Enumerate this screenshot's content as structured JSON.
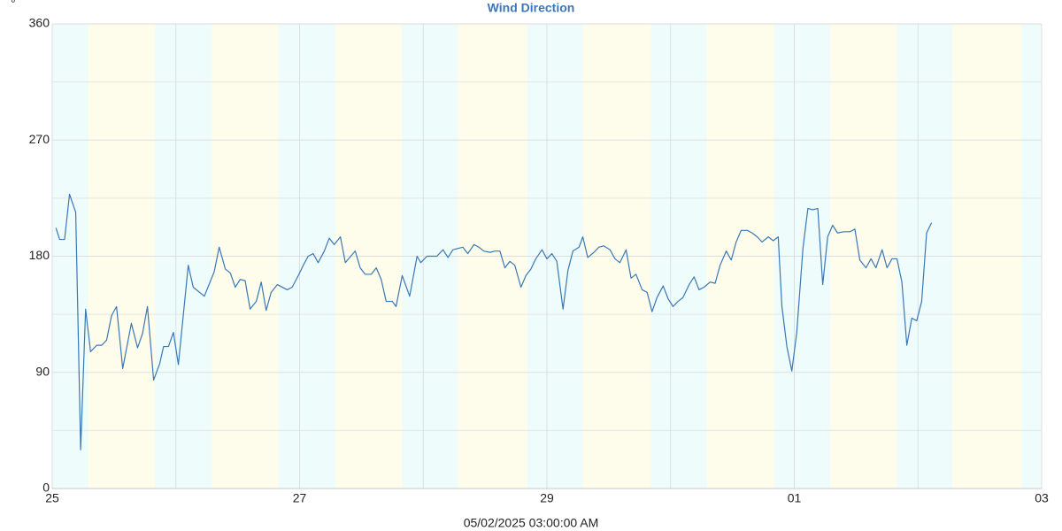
{
  "chart_data": {
    "type": "line",
    "title": "Wind Direction",
    "y_unit": "°",
    "footer": "05/02/2025 03:00:00 AM",
    "color": "#3b77b6",
    "night_color": "#effcfc",
    "day_color": "#fefdec",
    "grid": true,
    "xlim": [
      0,
      8
    ],
    "xticks": [
      {
        "value": 0,
        "label": "25"
      },
      {
        "value": 2,
        "label": "27"
      },
      {
        "value": 4,
        "label": "29"
      },
      {
        "value": 6,
        "label": "01"
      },
      {
        "value": 8,
        "label": "03"
      }
    ],
    "x_minor_ticks": [
      1,
      3,
      5,
      7
    ],
    "ylim": [
      0,
      360
    ],
    "yticks": [
      0,
      90,
      180,
      270,
      360
    ],
    "y_minor_ticks": [
      45,
      135,
      225,
      315
    ],
    "day_bands": [
      [
        0.29,
        0.83
      ],
      [
        1.29,
        1.83
      ],
      [
        2.29,
        2.83
      ],
      [
        3.28,
        3.84
      ],
      [
        4.29,
        4.84
      ],
      [
        5.29,
        5.84
      ],
      [
        6.29,
        6.83
      ],
      [
        7.28,
        7.84
      ]
    ],
    "x": [
      0.03,
      0.06,
      0.1,
      0.14,
      0.19,
      0.23,
      0.27,
      0.31,
      0.36,
      0.4,
      0.44,
      0.48,
      0.52,
      0.57,
      0.64,
      0.69,
      0.73,
      0.77,
      0.82,
      0.87,
      0.9,
      0.94,
      0.98,
      1.02,
      1.1,
      1.14,
      1.23,
      1.31,
      1.35,
      1.4,
      1.44,
      1.48,
      1.52,
      1.56,
      1.6,
      1.65,
      1.69,
      1.73,
      1.77,
      1.82,
      1.9,
      1.94,
      1.99,
      2.03,
      2.07,
      2.11,
      2.15,
      2.2,
      2.24,
      2.28,
      2.33,
      2.37,
      2.45,
      2.49,
      2.53,
      2.58,
      2.62,
      2.66,
      2.7,
      2.75,
      2.78,
      2.83,
      2.89,
      2.95,
      2.98,
      3.03,
      3.11,
      3.16,
      3.2,
      3.24,
      3.32,
      3.36,
      3.41,
      3.45,
      3.49,
      3.54,
      3.58,
      3.62,
      3.66,
      3.7,
      3.74,
      3.79,
      3.83,
      3.87,
      3.91,
      3.96,
      4.0,
      4.04,
      4.08,
      4.13,
      4.17,
      4.21,
      4.26,
      4.29,
      4.33,
      4.38,
      4.42,
      4.46,
      4.51,
      4.55,
      4.59,
      4.64,
      4.68,
      4.72,
      4.77,
      4.81,
      4.85,
      4.89,
      4.94,
      4.98,
      5.02,
      5.06,
      5.1,
      5.15,
      5.19,
      5.23,
      5.27,
      5.32,
      5.36,
      5.4,
      5.45,
      5.49,
      5.53,
      5.57,
      5.62,
      5.66,
      5.7,
      5.74,
      5.79,
      5.83,
      5.87,
      5.9,
      5.94,
      5.98,
      6.02,
      6.07,
      6.11,
      6.15,
      6.19,
      6.23,
      6.27,
      6.31,
      6.35,
      6.4,
      6.45,
      6.49,
      6.53,
      6.58,
      6.62,
      6.66,
      6.71,
      6.75,
      6.79,
      6.83,
      6.87,
      6.91,
      6.95,
      6.99,
      7.03,
      7.07,
      7.11
    ],
    "values": [
      202,
      193,
      193,
      228,
      214,
      30,
      139,
      106,
      111,
      111,
      115,
      134,
      141,
      93,
      128,
      109,
      120,
      141,
      84,
      97,
      110,
      110,
      121,
      96,
      173,
      156,
      149,
      168,
      187,
      170,
      167,
      156,
      162,
      161,
      139,
      145,
      160,
      138,
      152,
      158,
      154,
      156,
      165,
      173,
      180,
      182,
      175,
      184,
      194,
      189,
      195,
      175,
      184,
      171,
      166,
      166,
      171,
      162,
      145,
      145,
      141,
      165,
      149,
      180,
      175,
      180,
      180,
      185,
      179,
      185,
      187,
      182,
      189,
      187,
      184,
      183,
      184,
      184,
      171,
      176,
      173,
      156,
      165,
      170,
      178,
      185,
      178,
      182,
      176,
      139,
      169,
      184,
      187,
      195,
      179,
      183,
      187,
      188,
      185,
      178,
      175,
      185,
      163,
      166,
      154,
      152,
      137,
      148,
      157,
      147,
      141,
      145,
      148,
      158,
      164,
      154,
      156,
      160,
      159,
      173,
      184,
      177,
      191,
      200,
      200,
      198,
      195,
      191,
      195,
      192,
      195,
      141,
      110,
      91,
      121,
      186,
      217,
      216,
      217,
      158,
      195,
      204,
      198,
      199,
      199,
      201,
      177,
      171,
      178,
      171,
      185,
      171,
      178,
      178,
      160,
      111,
      132,
      130,
      145,
      198,
      206
    ]
  }
}
